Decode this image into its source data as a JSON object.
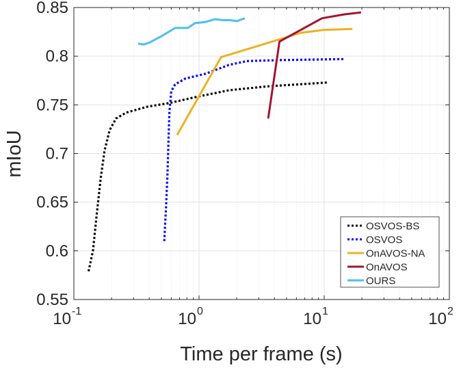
{
  "chart_data": {
    "type": "line",
    "xlabel": "Time per frame (s)",
    "ylabel": "mIoU",
    "xscale": "log",
    "xlim": [
      0.1,
      100
    ],
    "ylim": [
      0.55,
      0.85
    ],
    "grid": true,
    "legend_position": "bottom-right",
    "x_ticks": [
      {
        "base": "10",
        "exp": "-1",
        "value": 0.1
      },
      {
        "base": "10",
        "exp": "0",
        "value": 1
      },
      {
        "base": "10",
        "exp": "1",
        "value": 10
      },
      {
        "base": "10",
        "exp": "2",
        "value": 100
      }
    ],
    "y_ticks": [
      {
        "label": "0.55",
        "value": 0.55
      },
      {
        "label": "0.6",
        "value": 0.6
      },
      {
        "label": "0.65",
        "value": 0.65
      },
      {
        "label": "0.7",
        "value": 0.7
      },
      {
        "label": "0.75",
        "value": 0.75
      },
      {
        "label": "0.8",
        "value": 0.8
      },
      {
        "label": "0.85",
        "value": 0.85
      }
    ],
    "series": [
      {
        "name": "OSVOS-BS",
        "color": "#000000",
        "style": "dotted",
        "x": [
          0.131,
          0.142,
          0.153,
          0.164,
          0.176,
          0.193,
          0.217,
          0.262,
          0.383,
          0.586,
          0.94,
          1.73,
          3.52,
          10.7
        ],
        "y": [
          0.579,
          0.6,
          0.64,
          0.675,
          0.703,
          0.724,
          0.736,
          0.742,
          0.748,
          0.752,
          0.758,
          0.765,
          0.769,
          0.773
        ]
      },
      {
        "name": "OSVOS",
        "color": "#0000ff",
        "style": "dotted",
        "x": [
          0.528,
          0.546,
          0.559,
          0.58,
          0.6,
          0.644,
          0.778,
          1.13,
          1.73,
          2.41,
          4.45,
          14.5
        ],
        "y": [
          0.61,
          0.647,
          0.678,
          0.743,
          0.764,
          0.771,
          0.777,
          0.782,
          0.791,
          0.795,
          0.796,
          0.797
        ]
      },
      {
        "name": "OnAVOS-NA",
        "color": "#edb120",
        "style": "solid",
        "x": [
          0.668,
          1.5,
          6.5,
          9.9,
          16.8
        ],
        "y": [
          0.719,
          0.799,
          0.824,
          0.827,
          0.828
        ]
      },
      {
        "name": "OnAVOS",
        "color": "#a2142f",
        "style": "solid",
        "x": [
          3.57,
          4.39,
          6.5,
          9.6,
          14.5,
          19.7
        ],
        "y": [
          0.736,
          0.815,
          0.827,
          0.839,
          0.843,
          0.845
        ]
      },
      {
        "name": "OURS",
        "color": "#4dbeee",
        "style": "solid",
        "x": [
          0.325,
          0.362,
          0.402,
          0.508,
          0.644,
          0.815,
          0.93,
          1.11,
          1.34,
          1.58,
          1.77,
          2.0,
          2.32
        ],
        "y": [
          0.813,
          0.812,
          0.814,
          0.821,
          0.829,
          0.829,
          0.834,
          0.835,
          0.838,
          0.837,
          0.837,
          0.836,
          0.839
        ]
      }
    ]
  }
}
